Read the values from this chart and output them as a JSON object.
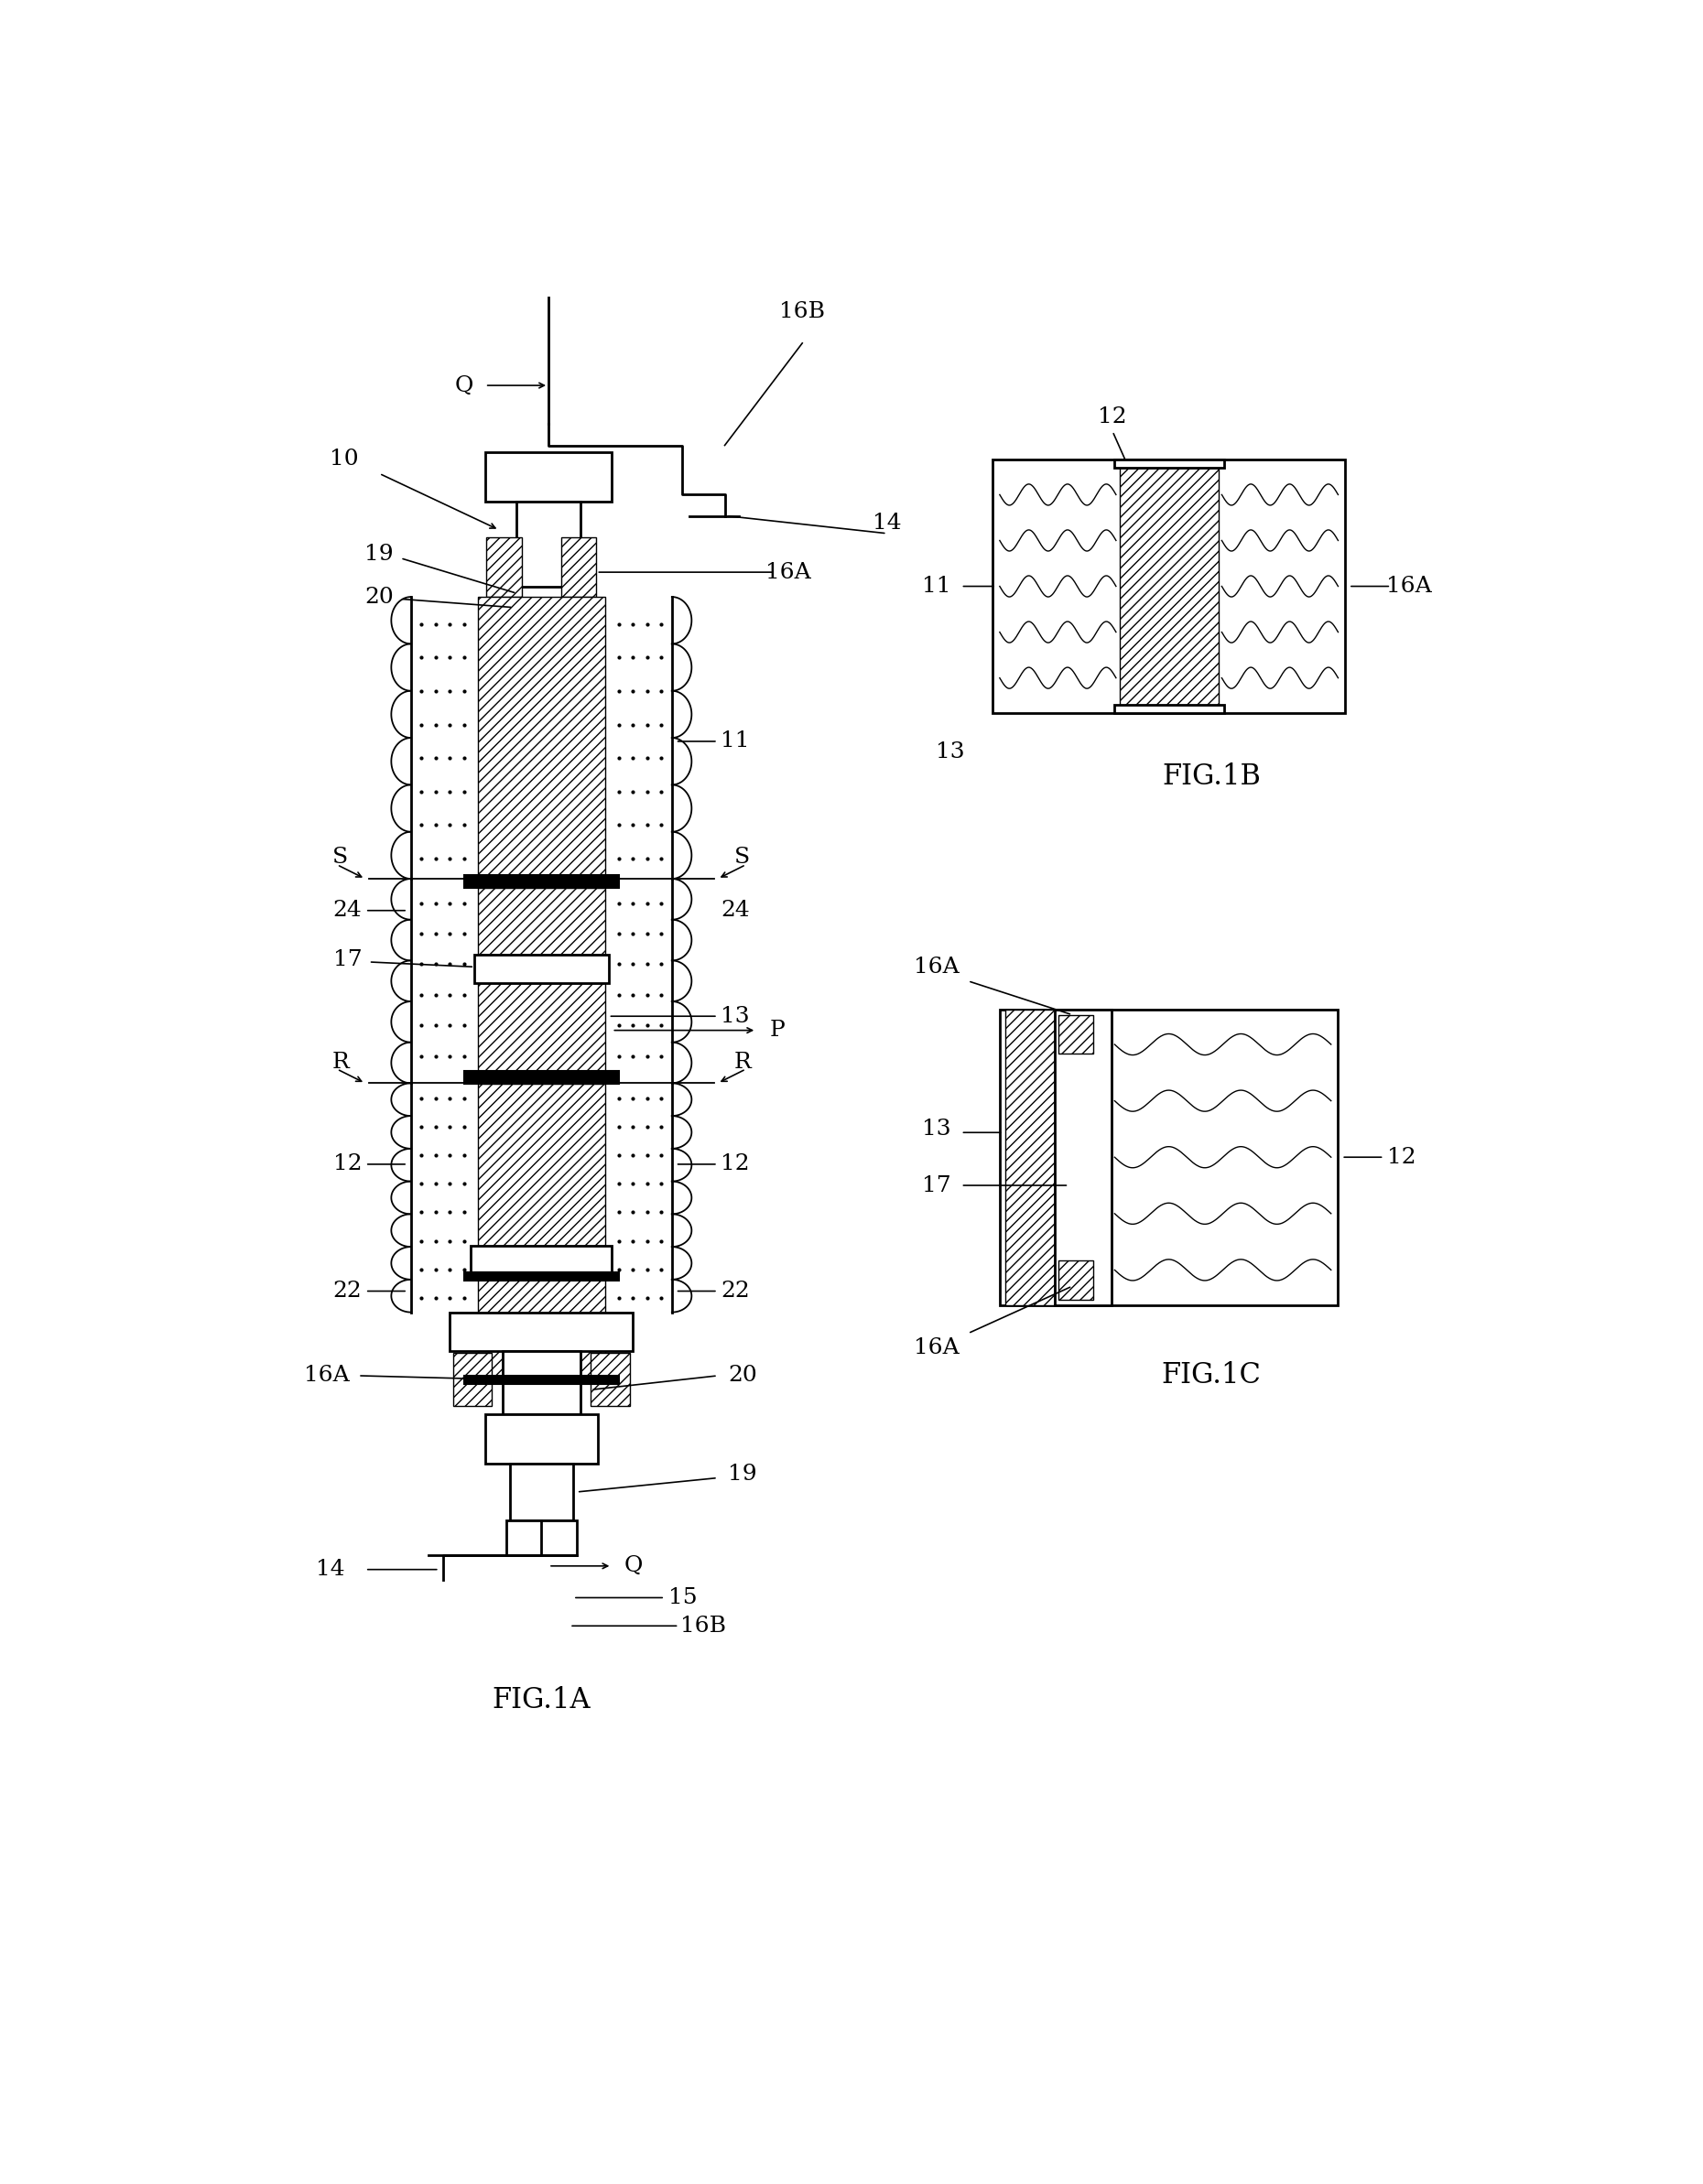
{
  "background_color": "#ffffff",
  "fig_width": 18.6,
  "fig_height": 23.86,
  "fig1a_label": "FIG.1A",
  "fig1b_label": "FIG.1B",
  "fig1c_label": "FIG.1C"
}
